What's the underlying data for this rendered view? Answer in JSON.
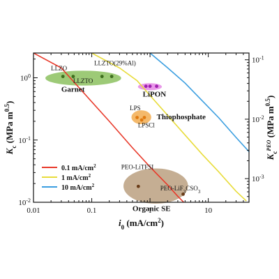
{
  "chart_data": {
    "type": "line",
    "x_axis": {
      "scale": "log",
      "lim": [
        0.01,
        50
      ],
      "ticks": [
        0.01,
        0.1,
        1,
        10
      ],
      "tick_labels": [
        "0.01",
        "0.1",
        "1",
        "10"
      ],
      "label_main": "i",
      "label_sub": "0",
      "label_rest": " (mA/cm",
      "label_sup": "2",
      "label_end": ")"
    },
    "y_axis_left": {
      "scale": "log",
      "lim": [
        0.01,
        2.5
      ],
      "ticks": [
        0.01,
        0.1,
        1
      ],
      "tick_labels": [
        {
          "base": "10",
          "exp": "-2"
        },
        {
          "base": "10",
          "exp": "-1"
        },
        {
          "base": "10",
          "exp": "0"
        }
      ],
      "label_main": "K",
      "label_sub": "c",
      "label_rest": " (MPa m",
      "label_sup": "0.5",
      "label_end": ")"
    },
    "y_axis_right": {
      "scale": "log",
      "lim": [
        0.0004,
        0.13
      ],
      "ticks": [
        0.001,
        0.01,
        0.1
      ],
      "tick_labels": [
        {
          "base": "10",
          "exp": "-3"
        },
        {
          "base": "10",
          "exp": "-2"
        },
        {
          "base": "10",
          "exp": "-1"
        }
      ],
      "label_main": "K",
      "label_sub": "c",
      "label_sup_main": "PEO",
      "label_rest": " (MPa m",
      "label_sup": "0.5",
      "label_end": ")"
    },
    "series": [
      {
        "name": "0.1 mA/cm²",
        "color": "#e8392a",
        "x": [
          0.01,
          0.03,
          0.08,
          0.2,
          0.5,
          1,
          2,
          3,
          4.5
        ],
        "y": [
          2.5,
          1.44,
          0.52,
          0.2,
          0.075,
          0.037,
          0.019,
          0.0125,
          0.0085
        ]
      },
      {
        "name": "1 mA/cm²",
        "color": "#e8dc3a",
        "x": [
          0.1,
          0.3,
          0.6,
          1,
          2,
          4,
          8,
          15,
          30,
          45
        ],
        "y": [
          2.5,
          1.44,
          0.9,
          0.52,
          0.25,
          0.12,
          0.058,
          0.031,
          0.015,
          0.0105
        ]
      },
      {
        "name": "10 mA/cm²",
        "color": "#3a9ee0",
        "x": [
          1,
          2,
          4,
          8,
          15,
          30,
          50
        ],
        "y": [
          2.5,
          1.45,
          0.82,
          0.42,
          0.23,
          0.11,
          0.065
        ]
      }
    ],
    "legend": {
      "position": "lower-left",
      "entries": [
        {
          "base": "0.1 mA/cm",
          "sup": "2",
          "color": "#e8392a"
        },
        {
          "base": "1 mA/cm",
          "sup": "2",
          "color": "#e8dc3a"
        },
        {
          "base": "10 mA/cm",
          "sup": "2",
          "color": "#3a9ee0"
        }
      ]
    },
    "regions": [
      {
        "name": "Garnet",
        "fill": "#7cb84a",
        "opacity": 0.75,
        "x_range": [
          0.016,
          0.32
        ],
        "y_range": [
          0.75,
          1.3
        ],
        "label_x": 0.03,
        "label_y": 0.6
      },
      {
        "name": "LiPON",
        "fill": "#e06ee0",
        "opacity": 0.7,
        "x_range": [
          0.62,
          1.6
        ],
        "y_range": [
          0.63,
          0.82
        ],
        "label_x": 0.75,
        "label_y": 0.5
      },
      {
        "name": "Thiophosphate",
        "fill": "#f0a23a",
        "opacity": 0.75,
        "x_range": [
          0.48,
          1.05
        ],
        "y_range": [
          0.18,
          0.3
        ],
        "label_x": 1.3,
        "label_y": 0.215
      },
      {
        "name": "Organic SE",
        "fill": "#b79a78",
        "opacity": 0.8,
        "x_range": [
          0.35,
          4.5
        ],
        "y_range": [
          0.0095,
          0.035
        ],
        "label_x": 0.5,
        "label_y": 0.0072
      }
    ],
    "points": [
      {
        "label": "LLZO",
        "x": 0.032,
        "y": 1.05,
        "color": "#3e6e1e",
        "label_x": 0.02,
        "label_y": 1.32
      },
      {
        "label": "LLZTO",
        "x": 0.048,
        "y": 1.05,
        "color": "#3e6e1e",
        "label_x": 0.048,
        "label_y": 0.82
      },
      {
        "label": "LLZTO(29%Al)",
        "x": 0.15,
        "y": 1.05,
        "color": "#3e6e1e",
        "label_x": 0.11,
        "label_y": 1.6
      },
      {
        "label": "",
        "x": 0.22,
        "y": 1.05,
        "color": "#3e6e1e",
        "label_x": 0.22,
        "label_y": 1.05
      },
      {
        "label": "",
        "x": 0.85,
        "y": 0.73,
        "color": "#a020b0",
        "label_x": 0.85,
        "label_y": 0.73
      },
      {
        "label": "",
        "x": 1.0,
        "y": 0.73,
        "color": "#a020b0",
        "label_x": 1.0,
        "label_y": 0.73
      },
      {
        "label": "",
        "x": 1.3,
        "y": 0.73,
        "color": "#a020b0",
        "label_x": 1.3,
        "label_y": 0.73
      },
      {
        "label": "LPS",
        "x": 0.6,
        "y": 0.23,
        "color": "#e07a10",
        "label_x": 0.45,
        "label_y": 0.3
      },
      {
        "label": "LPSCl",
        "x": 0.8,
        "y": 0.23,
        "color": "#e07a10",
        "label_x": 0.62,
        "label_y": 0.16
      },
      {
        "label": "",
        "x": 0.72,
        "y": 0.21,
        "color": "#e07a10",
        "label_x": 0.72,
        "label_y": 0.21
      },
      {
        "label": "PEO-LiTFSI",
        "x": 0.63,
        "y": 0.018,
        "color": "#6a3c18",
        "label_x": 0.32,
        "label_y": 0.034
      },
      {
        "label": "PEO-LiF",
        "label_sub": "3",
        "label_after_sub": "CSO",
        "x": 3.7,
        "y": 0.0135,
        "color": "#6a3c18",
        "label_x": 1.5,
        "label_y": 0.0155
      }
    ]
  }
}
